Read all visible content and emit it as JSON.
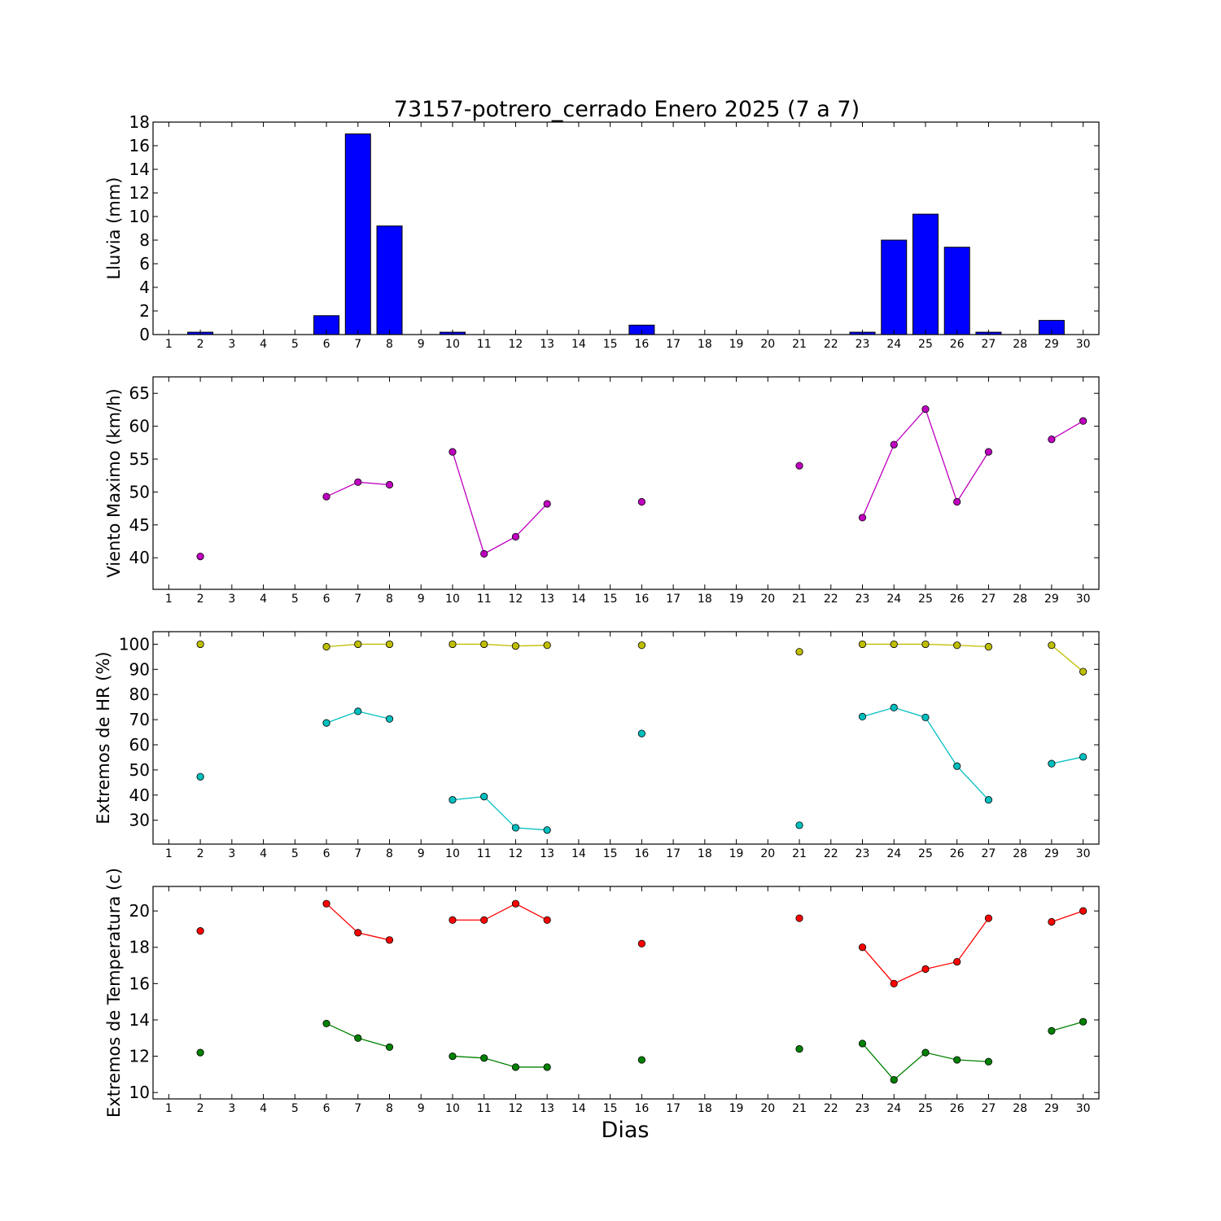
{
  "chart_title": "73157-potrero_cerrado Enero 2025  (7 a 7)",
  "shared_xlabel": "Dias",
  "chart_data": [
    {
      "type": "bar",
      "ylabel": "Lluvia (mm)",
      "ylim": [
        0,
        18
      ],
      "yticks": [
        0,
        2,
        4,
        6,
        8,
        10,
        12,
        14,
        16,
        18
      ],
      "xlim": [
        0.5,
        30.5
      ],
      "xticks": [
        1,
        2,
        3,
        4,
        5,
        6,
        7,
        8,
        9,
        10,
        11,
        12,
        13,
        14,
        15,
        16,
        17,
        18,
        19,
        20,
        21,
        22,
        23,
        24,
        25,
        26,
        27,
        28,
        29,
        30
      ],
      "x": [
        2,
        6,
        7,
        8,
        10,
        16,
        23,
        24,
        25,
        26,
        27,
        29
      ],
      "values": [
        0.2,
        1.6,
        17.0,
        9.2,
        0.2,
        0.8,
        0.2,
        8.0,
        10.2,
        7.4,
        0.2,
        1.2
      ],
      "color": "#0000ff"
    },
    {
      "type": "line",
      "ylabel": "Viento Maximo (km/h)",
      "ylim": [
        35.2,
        67.5
      ],
      "yticks": [
        40,
        45,
        50,
        55,
        60,
        65
      ],
      "xlim": [
        0.5,
        30.5
      ],
      "xticks": [
        1,
        2,
        3,
        4,
        5,
        6,
        7,
        8,
        9,
        10,
        11,
        12,
        13,
        14,
        15,
        16,
        17,
        18,
        19,
        20,
        21,
        22,
        23,
        24,
        25,
        26,
        27,
        28,
        29,
        30
      ],
      "series": [
        {
          "color": "#bf00bf",
          "x": [
            2,
            3,
            4,
            5,
            6,
            7,
            8,
            9,
            10,
            11,
            12,
            13,
            14,
            15,
            16,
            17,
            18,
            19,
            20,
            21,
            22,
            23,
            24,
            25,
            26,
            27,
            28,
            29,
            30
          ],
          "y": [
            40.2,
            null,
            null,
            null,
            49.3,
            51.5,
            51.1,
            null,
            56.1,
            40.6,
            43.2,
            48.2,
            null,
            null,
            48.5,
            null,
            null,
            null,
            null,
            54.0,
            null,
            46.1,
            57.2,
            62.6,
            48.5,
            56.1,
            null,
            58.0,
            60.8
          ]
        }
      ]
    },
    {
      "type": "line",
      "ylabel": "Extremos de HR (%)",
      "ylim": [
        20.5,
        105
      ],
      "yticks": [
        30,
        40,
        50,
        60,
        70,
        80,
        90,
        100
      ],
      "xlim": [
        0.5,
        30.5
      ],
      "xticks": [
        1,
        2,
        3,
        4,
        5,
        6,
        7,
        8,
        9,
        10,
        11,
        12,
        13,
        14,
        15,
        16,
        17,
        18,
        19,
        20,
        21,
        22,
        23,
        24,
        25,
        26,
        27,
        28,
        29,
        30
      ],
      "series": [
        {
          "color": "#bfbf00",
          "x": [
            2,
            3,
            4,
            5,
            6,
            7,
            8,
            9,
            10,
            11,
            12,
            13,
            14,
            15,
            16,
            17,
            18,
            19,
            20,
            21,
            22,
            23,
            24,
            25,
            26,
            27,
            28,
            29,
            30
          ],
          "y": [
            100,
            null,
            null,
            null,
            99,
            100,
            100,
            null,
            100,
            100,
            99.3,
            99.6,
            null,
            null,
            99.6,
            null,
            null,
            null,
            null,
            97,
            null,
            100,
            100,
            100,
            99.6,
            99,
            null,
            99.6,
            89.1
          ]
        },
        {
          "color": "#00bfbf",
          "x": [
            2,
            3,
            4,
            5,
            6,
            7,
            8,
            9,
            10,
            11,
            12,
            13,
            14,
            15,
            16,
            17,
            18,
            19,
            20,
            21,
            22,
            23,
            24,
            25,
            26,
            27,
            28,
            29,
            30
          ],
          "y": [
            47.3,
            null,
            null,
            null,
            68.7,
            73.3,
            70.3,
            null,
            38.1,
            39.4,
            27.0,
            26.1,
            null,
            null,
            64.5,
            null,
            null,
            null,
            null,
            28.0,
            null,
            71.2,
            74.8,
            70.9,
            51.5,
            38.1,
            null,
            52.5,
            55.2
          ]
        }
      ]
    },
    {
      "type": "line",
      "ylabel": "Extremos de Temperatura (c)",
      "ylim": [
        9.65,
        21.35
      ],
      "yticks": [
        10,
        12,
        14,
        16,
        18,
        20
      ],
      "xlim": [
        0.5,
        30.5
      ],
      "xticks": [
        1,
        2,
        3,
        4,
        5,
        6,
        7,
        8,
        9,
        10,
        11,
        12,
        13,
        14,
        15,
        16,
        17,
        18,
        19,
        20,
        21,
        22,
        23,
        24,
        25,
        26,
        27,
        28,
        29,
        30
      ],
      "series": [
        {
          "color": "#ff0000",
          "x": [
            2,
            3,
            4,
            5,
            6,
            7,
            8,
            9,
            10,
            11,
            12,
            13,
            14,
            15,
            16,
            17,
            18,
            19,
            20,
            21,
            22,
            23,
            24,
            25,
            26,
            27,
            28,
            29,
            30
          ],
          "y": [
            18.9,
            null,
            null,
            null,
            20.4,
            18.8,
            18.4,
            null,
            19.5,
            19.5,
            20.4,
            19.5,
            null,
            null,
            18.2,
            null,
            null,
            null,
            null,
            19.6,
            null,
            18.0,
            16.0,
            16.8,
            17.2,
            19.6,
            null,
            19.4,
            20.0
          ]
        },
        {
          "color": "#008000",
          "x": [
            2,
            3,
            4,
            5,
            6,
            7,
            8,
            9,
            10,
            11,
            12,
            13,
            14,
            15,
            16,
            17,
            18,
            19,
            20,
            21,
            22,
            23,
            24,
            25,
            26,
            27,
            28,
            29,
            30
          ],
          "y": [
            12.2,
            null,
            null,
            null,
            13.8,
            13.0,
            12.5,
            null,
            12.0,
            11.9,
            11.4,
            11.4,
            null,
            null,
            11.8,
            null,
            null,
            null,
            null,
            12.4,
            null,
            12.7,
            10.7,
            12.2,
            11.8,
            11.7,
            null,
            13.4,
            13.9
          ]
        }
      ]
    }
  ]
}
